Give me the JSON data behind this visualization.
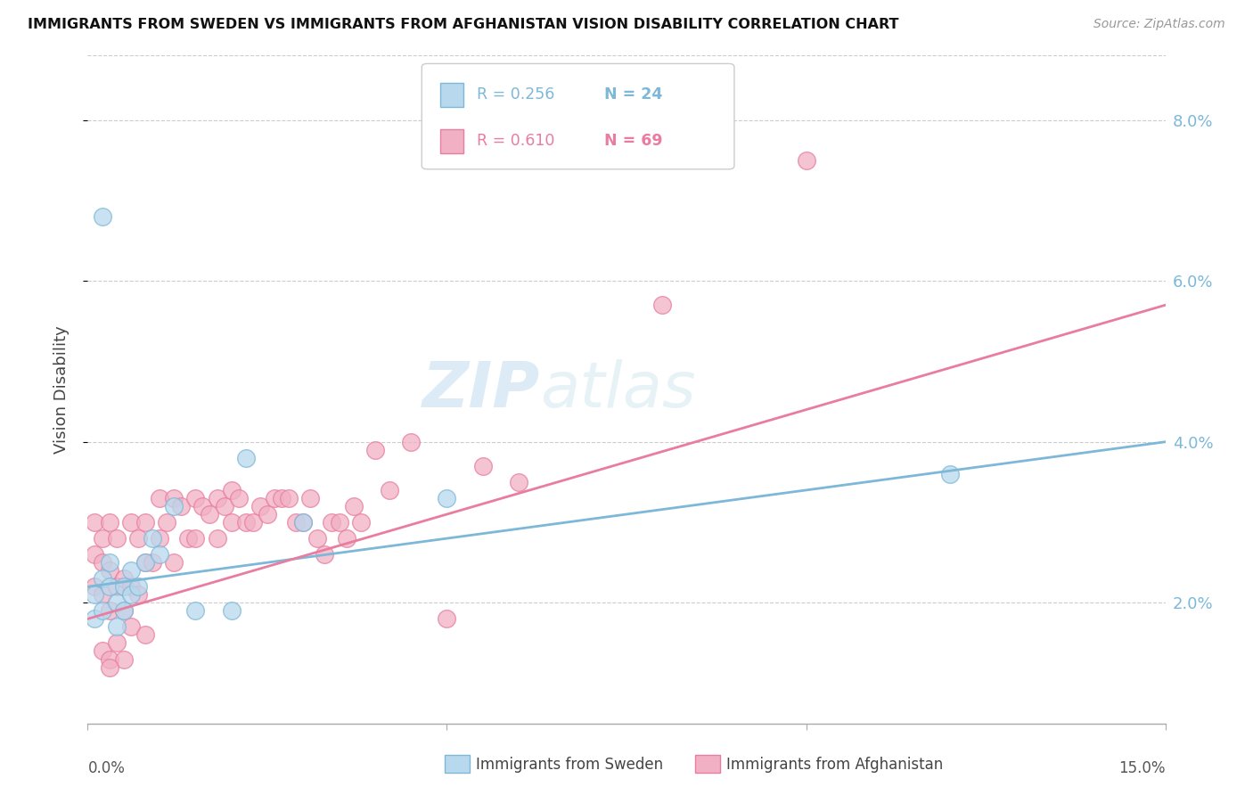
{
  "title": "IMMIGRANTS FROM SWEDEN VS IMMIGRANTS FROM AFGHANISTAN VISION DISABILITY CORRELATION CHART",
  "source": "Source: ZipAtlas.com",
  "ylabel": "Vision Disability",
  "yticks": [
    0.02,
    0.04,
    0.06,
    0.08
  ],
  "ytick_labels": [
    "2.0%",
    "4.0%",
    "6.0%",
    "8.0%"
  ],
  "xlim": [
    0.0,
    0.15
  ],
  "ylim": [
    0.005,
    0.088
  ],
  "watermark_zip": "ZIP",
  "watermark_atlas": "atlas",
  "sweden_color": "#7db8d8",
  "sweden_color_fill": "#b8d9ed",
  "afghanistan_color": "#e87da0",
  "afghanistan_color_fill": "#f2b0c5",
  "sweden_R": 0.256,
  "sweden_N": 24,
  "afghanistan_R": 0.61,
  "afghanistan_N": 69,
  "sweden_line_x": [
    0.0,
    0.15
  ],
  "sweden_line_y": [
    0.022,
    0.04
  ],
  "afghanistan_line_x": [
    0.0,
    0.15
  ],
  "afghanistan_line_y": [
    0.018,
    0.057
  ],
  "sweden_x": [
    0.001,
    0.001,
    0.002,
    0.002,
    0.003,
    0.003,
    0.004,
    0.004,
    0.005,
    0.005,
    0.006,
    0.006,
    0.007,
    0.008,
    0.009,
    0.01,
    0.012,
    0.015,
    0.02,
    0.022,
    0.03,
    0.05,
    0.002,
    0.12
  ],
  "sweden_y": [
    0.018,
    0.021,
    0.019,
    0.023,
    0.022,
    0.025,
    0.02,
    0.017,
    0.019,
    0.022,
    0.024,
    0.021,
    0.022,
    0.025,
    0.028,
    0.026,
    0.032,
    0.019,
    0.019,
    0.038,
    0.03,
    0.033,
    0.068,
    0.036
  ],
  "afghanistan_x": [
    0.001,
    0.001,
    0.001,
    0.002,
    0.002,
    0.002,
    0.003,
    0.003,
    0.003,
    0.004,
    0.004,
    0.005,
    0.005,
    0.006,
    0.006,
    0.007,
    0.007,
    0.008,
    0.008,
    0.009,
    0.01,
    0.01,
    0.011,
    0.012,
    0.012,
    0.013,
    0.014,
    0.015,
    0.015,
    0.016,
    0.017,
    0.018,
    0.018,
    0.019,
    0.02,
    0.02,
    0.021,
    0.022,
    0.023,
    0.024,
    0.025,
    0.026,
    0.027,
    0.028,
    0.029,
    0.03,
    0.031,
    0.032,
    0.033,
    0.034,
    0.035,
    0.036,
    0.037,
    0.038,
    0.04,
    0.042,
    0.045,
    0.05,
    0.055,
    0.06,
    0.002,
    0.003,
    0.004,
    0.005,
    0.006,
    0.008,
    0.08,
    0.1,
    0.003
  ],
  "afghanistan_y": [
    0.022,
    0.026,
    0.03,
    0.021,
    0.025,
    0.028,
    0.019,
    0.024,
    0.03,
    0.022,
    0.028,
    0.019,
    0.023,
    0.022,
    0.03,
    0.021,
    0.028,
    0.025,
    0.03,
    0.025,
    0.028,
    0.033,
    0.03,
    0.025,
    0.033,
    0.032,
    0.028,
    0.028,
    0.033,
    0.032,
    0.031,
    0.028,
    0.033,
    0.032,
    0.03,
    0.034,
    0.033,
    0.03,
    0.03,
    0.032,
    0.031,
    0.033,
    0.033,
    0.033,
    0.03,
    0.03,
    0.033,
    0.028,
    0.026,
    0.03,
    0.03,
    0.028,
    0.032,
    0.03,
    0.039,
    0.034,
    0.04,
    0.018,
    0.037,
    0.035,
    0.014,
    0.013,
    0.015,
    0.013,
    0.017,
    0.016,
    0.057,
    0.075,
    0.012
  ]
}
